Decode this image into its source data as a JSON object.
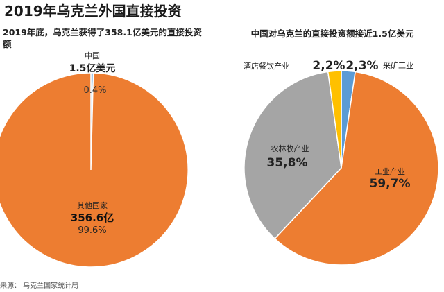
{
  "title": "2019年乌克兰外国直接投资",
  "source": "来源： 乌克兰国家统计局",
  "chart_data": [
    {
      "type": "pie",
      "subtitle": "2019年底，乌克兰获得了358.1亿美元的直接投资额",
      "slices": [
        {
          "name": "中国",
          "amount_label": "1.5亿美元",
          "value": 0.4,
          "pct_label": "0.4%",
          "color": "#5b9bd5"
        },
        {
          "name": "其他国家",
          "amount_label": "356.6亿",
          "value": 99.6,
          "pct_label": "99.6%",
          "color": "#ed7d31"
        }
      ]
    },
    {
      "type": "pie",
      "subtitle": "中国对乌克兰的直接投资额接近1.5亿美元",
      "slices": [
        {
          "name": "采矿工业",
          "value": 2.3,
          "pct_label": "2,3%",
          "color": "#5b9bd5"
        },
        {
          "name": "工业产业",
          "value": 59.7,
          "pct_label": "59,7%",
          "color": "#ed7d31"
        },
        {
          "name": "农林牧产业",
          "value": 35.8,
          "pct_label": "35,8%",
          "color": "#a5a5a5"
        },
        {
          "name": "酒店餐饮产业",
          "value": 2.2,
          "pct_label": "2,2%",
          "color": "#ffc000"
        }
      ]
    }
  ]
}
